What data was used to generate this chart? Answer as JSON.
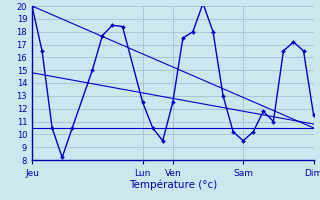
{
  "xlabel": "Température (°c)",
  "bg_color": "#cce8ee",
  "line_color": "#0000cc",
  "grid_color": "#99bbcc",
  "axis_color": "#0000aa",
  "ylim": [
    8,
    20
  ],
  "xlim": [
    0,
    28
  ],
  "yticks": [
    8,
    9,
    10,
    11,
    12,
    13,
    14,
    15,
    16,
    17,
    18,
    19,
    20
  ],
  "day_ticks": [
    {
      "label": "Jeu",
      "x": 0
    },
    {
      "label": "Lun",
      "x": 11
    },
    {
      "label": "Ven",
      "x": 14
    },
    {
      "label": "Sam",
      "x": 21
    },
    {
      "label": "Dim",
      "x": 28
    }
  ],
  "main_line": [
    [
      0,
      20.0
    ],
    [
      1,
      16.5
    ],
    [
      2,
      10.5
    ],
    [
      3,
      8.2
    ],
    [
      4,
      10.5
    ],
    [
      6,
      15.0
    ],
    [
      7,
      17.7
    ],
    [
      8,
      18.5
    ],
    [
      9,
      18.4
    ],
    [
      11,
      12.5
    ],
    [
      12,
      10.5
    ],
    [
      13,
      9.5
    ],
    [
      14,
      12.5
    ],
    [
      15,
      17.5
    ],
    [
      16,
      18.0
    ],
    [
      17,
      20.2
    ],
    [
      18,
      18.0
    ],
    [
      19,
      13.0
    ],
    [
      20,
      10.2
    ],
    [
      21,
      9.5
    ],
    [
      22,
      10.2
    ],
    [
      23,
      11.8
    ],
    [
      24,
      11.0
    ],
    [
      25,
      16.5
    ],
    [
      26,
      17.2
    ],
    [
      27,
      16.5
    ],
    [
      28,
      11.5
    ]
  ],
  "trend_line1": [
    [
      0,
      20.0
    ],
    [
      28,
      10.5
    ]
  ],
  "trend_line2": [
    [
      0,
      14.8
    ],
    [
      28,
      10.8
    ]
  ],
  "trend_line3": [
    [
      0,
      10.5
    ],
    [
      28,
      10.5
    ]
  ]
}
